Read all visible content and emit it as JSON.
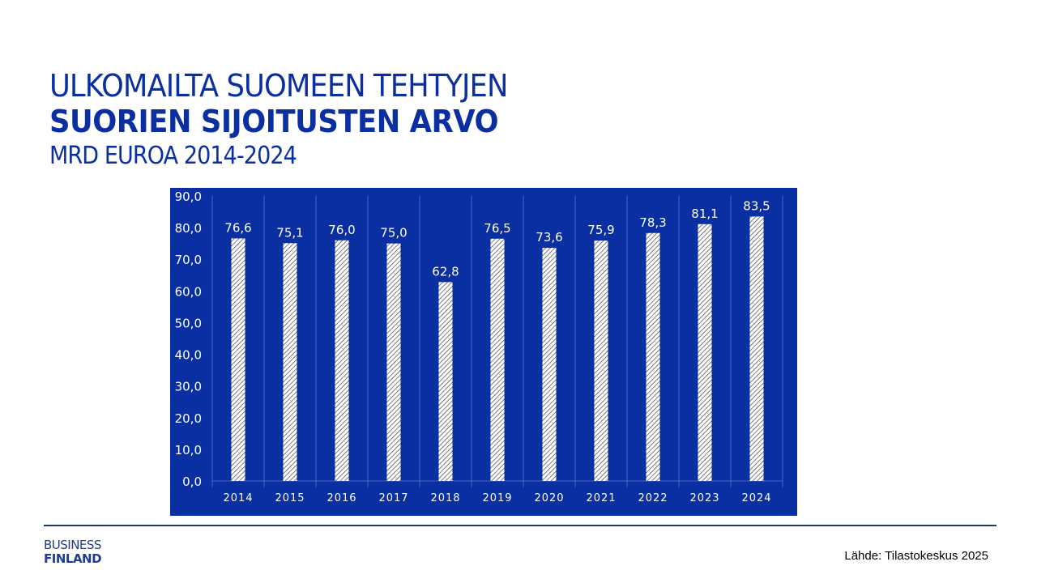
{
  "title": {
    "line1": "ULKOMAILTA SUOMEEN TEHTYJEN",
    "line2": "SUORIEN SIJOITUSTEN ARVO",
    "line3": "MRD EUROA 2014-2024"
  },
  "chart_data": {
    "type": "bar",
    "categories": [
      "2014",
      "2015",
      "2016",
      "2017",
      "2018",
      "2019",
      "2020",
      "2021",
      "2022",
      "2023",
      "2024"
    ],
    "values": [
      76.6,
      75.1,
      76.0,
      75.0,
      62.8,
      76.5,
      73.6,
      75.9,
      78.3,
      81.1,
      83.5
    ],
    "data_labels": [
      "76,6",
      "75,1",
      "76,0",
      "75,0",
      "62,8",
      "76,5",
      "73,6",
      "75,9",
      "78,3",
      "81,1",
      "83,5"
    ],
    "y_ticks": [
      "0,0",
      "10,0",
      "20,0",
      "30,0",
      "40,0",
      "50,0",
      "60,0",
      "70,0",
      "80,0",
      "90,0"
    ],
    "ylim": [
      0,
      90
    ],
    "background_color": "#0a2fa3",
    "bar_fill": "white with diagonal hatch",
    "grid": "vertical category separators"
  },
  "footer": {
    "logo_line1": "BUSINESS",
    "logo_line2": "FINLAND",
    "source": "Lähde: Tilastokeskus 2025"
  }
}
